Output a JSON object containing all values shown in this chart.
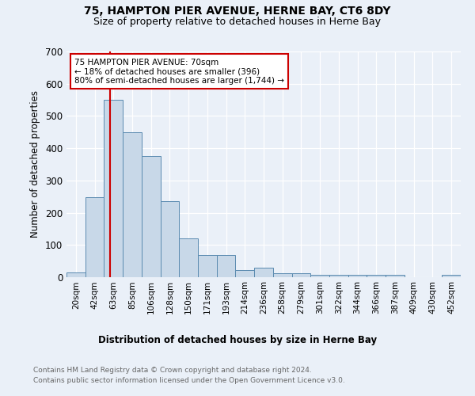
{
  "title1": "75, HAMPTON PIER AVENUE, HERNE BAY, CT6 8DY",
  "title2": "Size of property relative to detached houses in Herne Bay",
  "xlabel": "Distribution of detached houses by size in Herne Bay",
  "ylabel": "Number of detached properties",
  "bin_labels": [
    "20sqm",
    "42sqm",
    "63sqm",
    "85sqm",
    "106sqm",
    "128sqm",
    "150sqm",
    "171sqm",
    "193sqm",
    "214sqm",
    "236sqm",
    "258sqm",
    "279sqm",
    "301sqm",
    "322sqm",
    "344sqm",
    "366sqm",
    "387sqm",
    "409sqm",
    "430sqm",
    "452sqm"
  ],
  "bar_heights": [
    15,
    247,
    550,
    450,
    375,
    235,
    120,
    68,
    68,
    22,
    30,
    12,
    12,
    8,
    8,
    7,
    7,
    7,
    0,
    0,
    7
  ],
  "bar_color": "#c8d8e8",
  "bar_edge_color": "#5a8ab0",
  "red_line_color": "#cc0000",
  "annotation_text": "75 HAMPTON PIER AVENUE: 70sqm\n← 18% of detached houses are smaller (396)\n80% of semi-detached houses are larger (1,744) →",
  "annotation_box_color": "#ffffff",
  "annotation_box_edge": "#cc0000",
  "ylim": [
    0,
    700
  ],
  "yticks": [
    0,
    100,
    200,
    300,
    400,
    500,
    600,
    700
  ],
  "footer1": "Contains HM Land Registry data © Crown copyright and database right 2024.",
  "footer2": "Contains public sector information licensed under the Open Government Licence v3.0.",
  "bg_color": "#eaf0f8",
  "plot_bg_color": "#eaf0f8"
}
